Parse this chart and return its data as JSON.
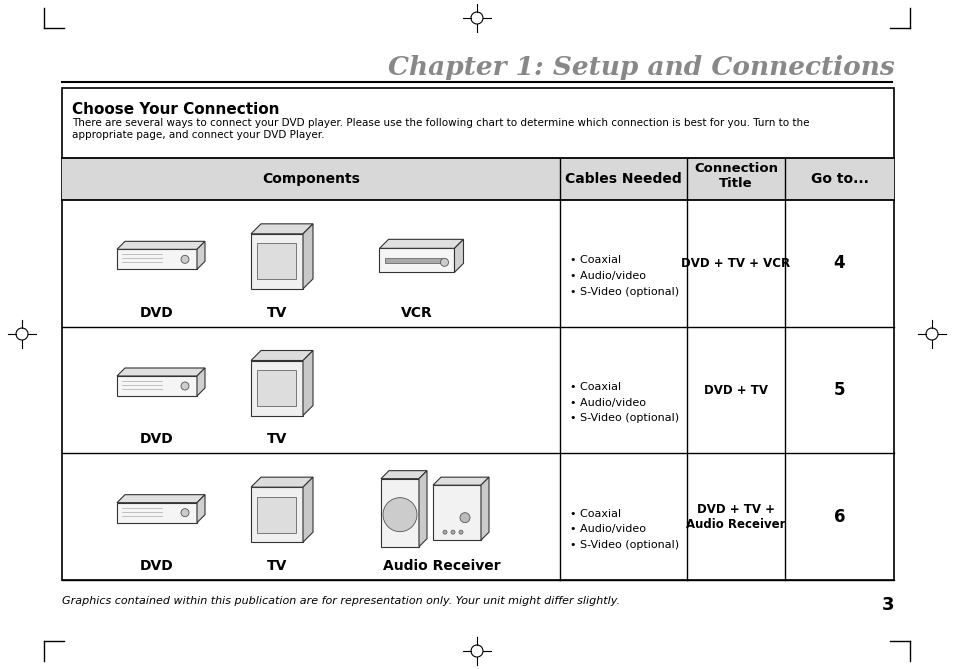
{
  "page_bg": "#ffffff",
  "page_title": "Chapter 1: Setup and Connections",
  "box_title": "Choose Your Connection",
  "box_desc1": "There are several ways to connect your DVD player. Please use the following chart to determine which connection is best for you. Turn to the",
  "box_desc2": "appropriate page, and connect your DVD Player.",
  "col_headers": [
    "Components",
    "Cables Needed",
    "Connection\nTitle",
    "Go to..."
  ],
  "row1_cables": "• Coaxial\n• Audio/video\n• S-Video (optional)",
  "row1_conn": "DVD + TV + VCR",
  "row1_goto": "4",
  "row1_labels": [
    "DVD",
    "TV",
    "VCR"
  ],
  "row2_cables": "• Coaxial\n• Audio/video\n• S-Video (optional)",
  "row2_conn": "DVD + TV",
  "row2_goto": "5",
  "row2_labels": [
    "DVD",
    "TV"
  ],
  "row3_cables": "• Coaxial\n• Audio/video\n• S-Video (optional)",
  "row3_conn": "DVD + TV +\nAudio Receiver",
  "row3_goto": "6",
  "row3_labels": [
    "DVD",
    "TV",
    "Audio Receiver"
  ],
  "footer": "Graphics contained within this publication are for representation only. Your unit might differ slightly.",
  "footer_page": "3"
}
